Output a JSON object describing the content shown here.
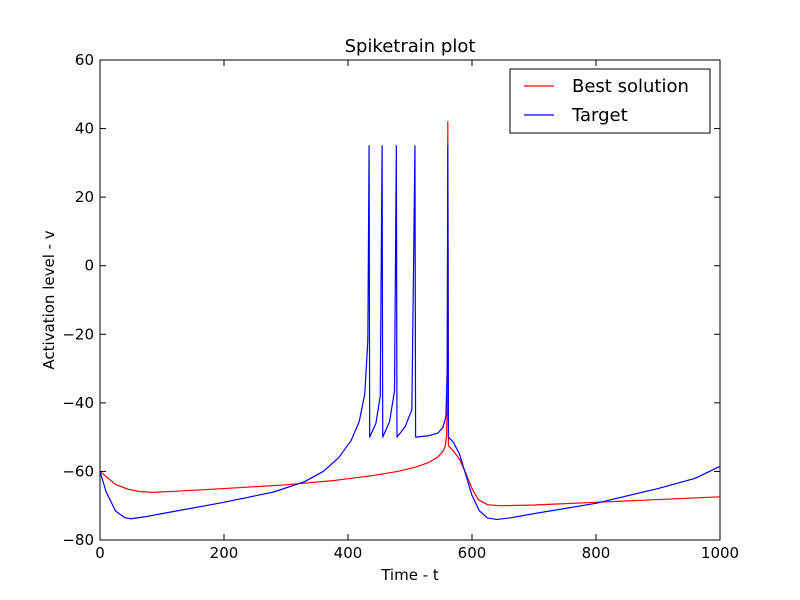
{
  "chart_data": {
    "type": "line",
    "title": "Spiketrain plot",
    "xlabel": "Time - t",
    "ylabel": "Activation level - v",
    "xlim": [
      0,
      1000
    ],
    "ylim": [
      -80,
      60
    ],
    "xticks": [
      0,
      200,
      400,
      600,
      800,
      1000
    ],
    "yticks": [
      -80,
      -60,
      -40,
      -20,
      0,
      20,
      40,
      60
    ],
    "grid": false,
    "legend_position": "upper right",
    "series": [
      {
        "name": "Best solution",
        "color": "#ff0000",
        "points": [
          [
            0,
            -60
          ],
          [
            10,
            -61.5
          ],
          [
            25,
            -63.8
          ],
          [
            45,
            -65.2
          ],
          [
            65,
            -65.9
          ],
          [
            85,
            -66.1
          ],
          [
            120,
            -65.8
          ],
          [
            200,
            -65.0
          ],
          [
            300,
            -63.9
          ],
          [
            380,
            -62.6
          ],
          [
            440,
            -61.2
          ],
          [
            480,
            -60.0
          ],
          [
            510,
            -58.7
          ],
          [
            530,
            -57.4
          ],
          [
            545,
            -55.8
          ],
          [
            553,
            -54.2
          ],
          [
            557,
            -52.5
          ],
          [
            559,
            -49.5
          ],
          [
            560,
            -42
          ],
          [
            561,
            42
          ],
          [
            562,
            -52.5
          ],
          [
            570,
            -54.0
          ],
          [
            580,
            -56.5
          ],
          [
            590,
            -60.5
          ],
          [
            600,
            -65.0
          ],
          [
            610,
            -68.2
          ],
          [
            625,
            -69.7
          ],
          [
            645,
            -70.0
          ],
          [
            700,
            -69.8
          ],
          [
            800,
            -69.0
          ],
          [
            900,
            -68.2
          ],
          [
            1000,
            -67.4
          ]
        ]
      },
      {
        "name": "Target",
        "color": "#0000ff",
        "points": [
          [
            0,
            -60
          ],
          [
            10,
            -66
          ],
          [
            25,
            -71.5
          ],
          [
            40,
            -73.5
          ],
          [
            50,
            -73.8
          ],
          [
            70,
            -73.3
          ],
          [
            100,
            -72.3
          ],
          [
            200,
            -69.0
          ],
          [
            280,
            -66.0
          ],
          [
            330,
            -63.0
          ],
          [
            360,
            -60.0
          ],
          [
            385,
            -56.0
          ],
          [
            405,
            -51.0
          ],
          [
            418,
            -45.5
          ],
          [
            427,
            -37.5
          ],
          [
            432,
            -22
          ],
          [
            434,
            35
          ],
          [
            435,
            -50
          ],
          [
            445,
            -46.0
          ],
          [
            452,
            -38.0
          ],
          [
            455,
            35
          ],
          [
            456,
            -50
          ],
          [
            467,
            -45.5
          ],
          [
            475,
            -36.5
          ],
          [
            478,
            35
          ],
          [
            479,
            -50
          ],
          [
            492,
            -47.0
          ],
          [
            503,
            -42.0
          ],
          [
            508,
            35
          ],
          [
            509,
            -50
          ],
          [
            530,
            -49.6
          ],
          [
            545,
            -48.8
          ],
          [
            553,
            -47.2
          ],
          [
            558,
            -44.0
          ],
          [
            560,
            -30
          ],
          [
            561,
            35
          ],
          [
            562,
            -50
          ],
          [
            570,
            -51.5
          ],
          [
            580,
            -55.0
          ],
          [
            590,
            -61.0
          ],
          [
            600,
            -67.0
          ],
          [
            612,
            -71.5
          ],
          [
            625,
            -73.6
          ],
          [
            640,
            -74.0
          ],
          [
            660,
            -73.6
          ],
          [
            700,
            -72.3
          ],
          [
            800,
            -69.3
          ],
          [
            900,
            -65.0
          ],
          [
            960,
            -62.0
          ],
          [
            1000,
            -58.5
          ]
        ]
      }
    ]
  }
}
